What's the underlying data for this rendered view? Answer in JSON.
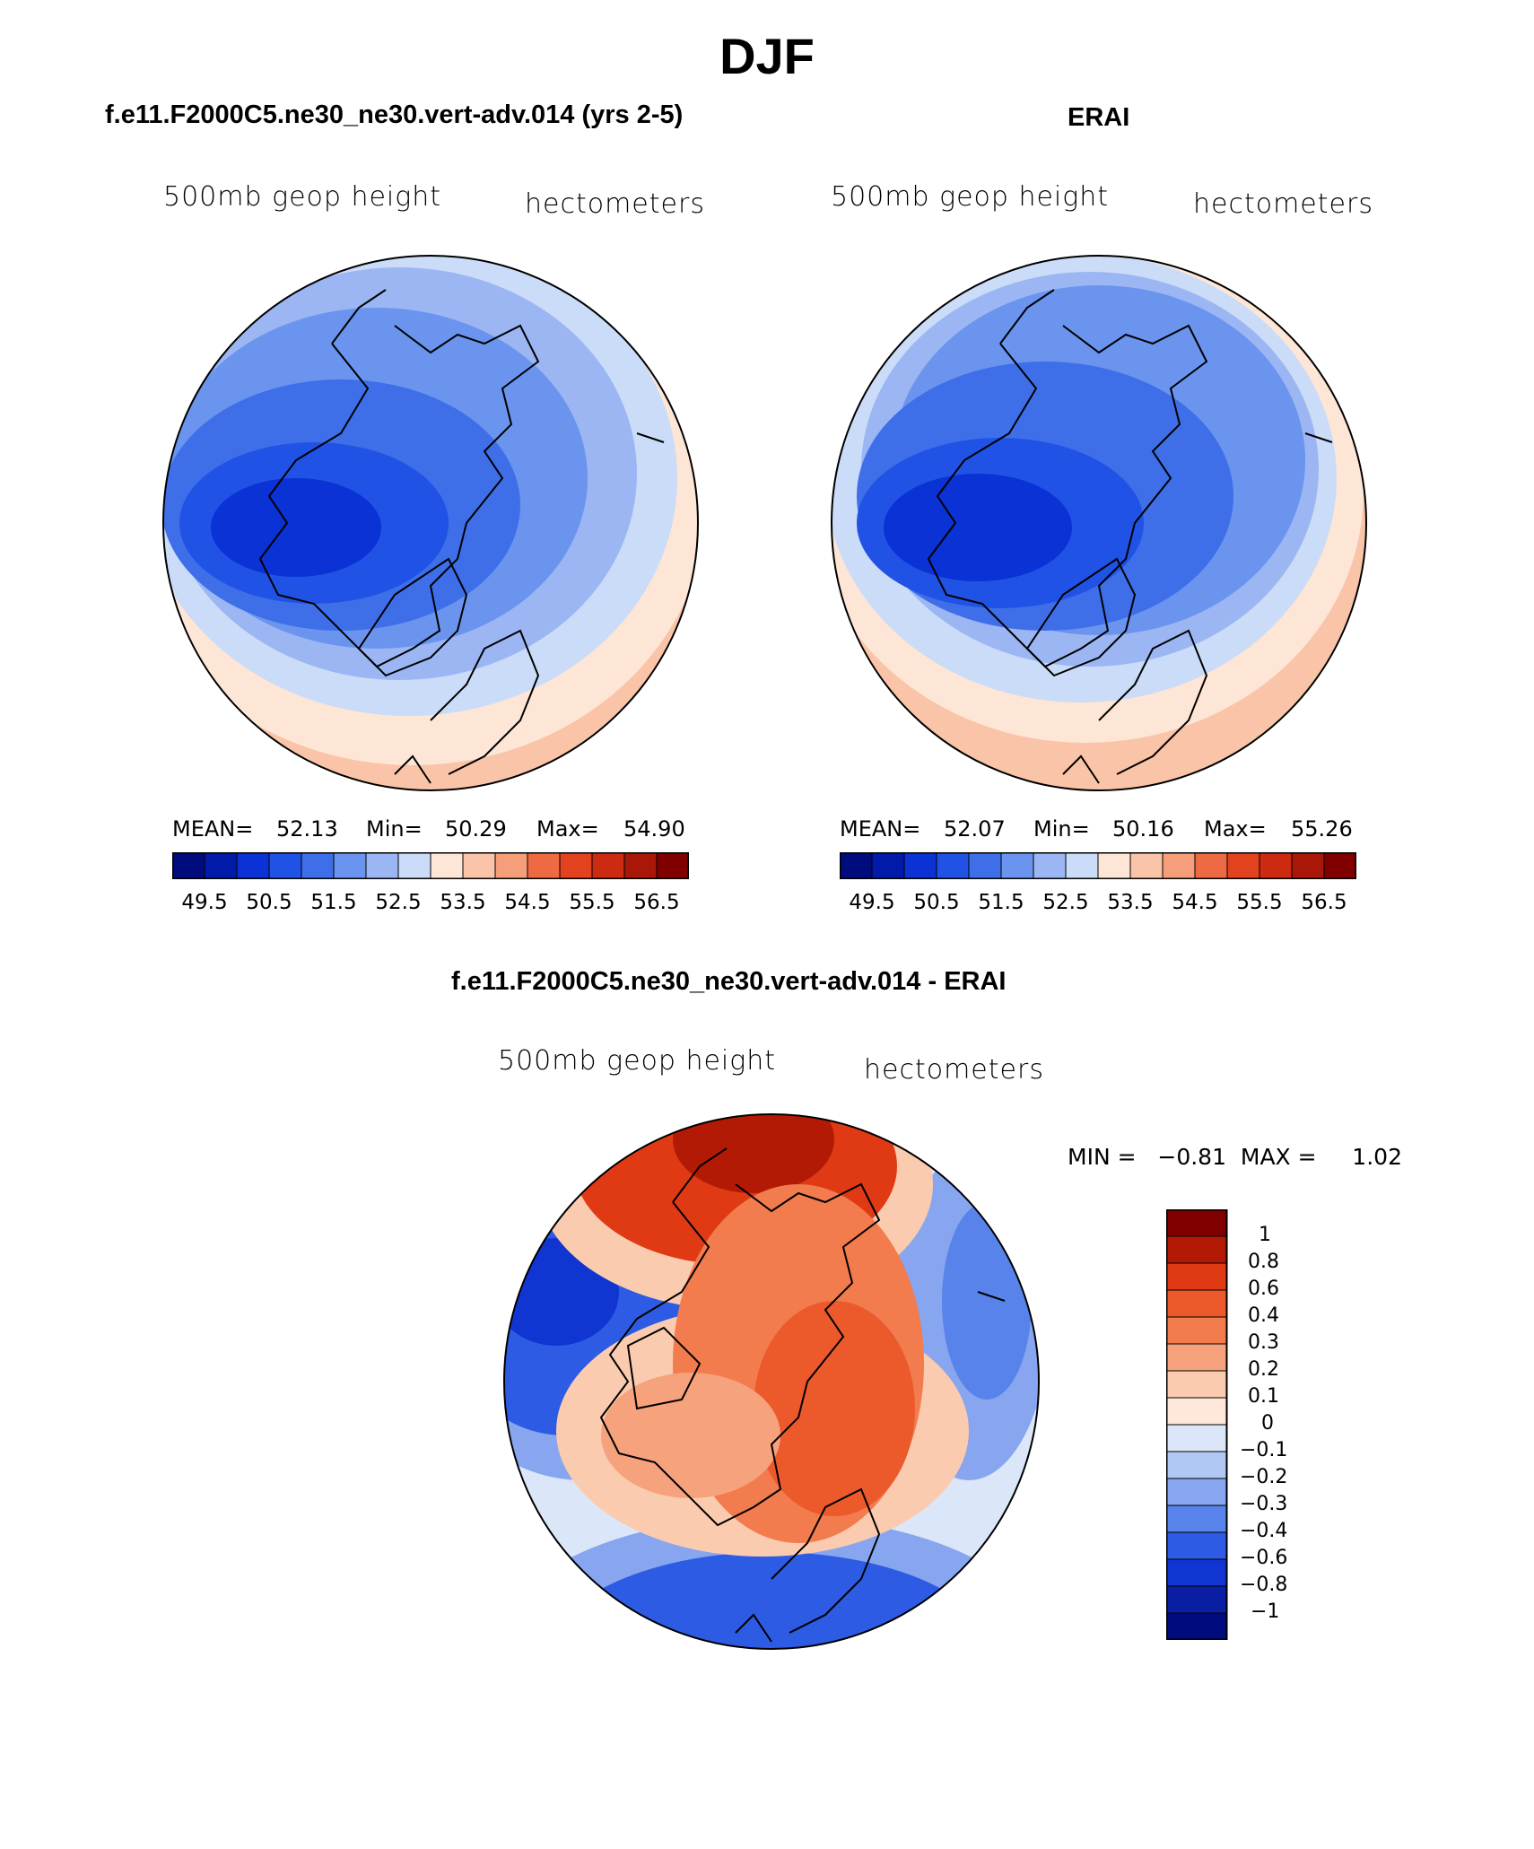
{
  "page": {
    "title": "DJF"
  },
  "panels": [
    {
      "id": "model",
      "heading": "f.e11.F2000C5.ne30_ne30.vert-adv.014 (yrs 2-5)",
      "left_label": "500mb  geop  height",
      "right_label": "hectometers",
      "stats": {
        "mean_label": "MEAN=",
        "mean": "52.13",
        "min_label": "Min=",
        "min": "50.29",
        "max_label": "Max=",
        "max": "54.90"
      },
      "colorbar_ticks": [
        "49.5",
        "50.5",
        "51.5",
        "52.5",
        "53.5",
        "54.5",
        "55.5",
        "56.5"
      ]
    },
    {
      "id": "erai",
      "heading": "ERAI",
      "left_label": "500mb  geop  height",
      "right_label": "hectometers",
      "stats": {
        "mean_label": "MEAN=",
        "mean": "52.07",
        "min_label": "Min=",
        "min": "50.16",
        "max_label": "Max=",
        "max": "55.26"
      },
      "colorbar_ticks": [
        "49.5",
        "50.5",
        "51.5",
        "52.5",
        "53.5",
        "54.5",
        "55.5",
        "56.5"
      ]
    }
  ],
  "diff": {
    "heading": "f.e11.F2000C5.ne30_ne30.vert-adv.014 - ERAI",
    "left_label": "500mb  geop  height",
    "right_label": "hectometers",
    "stats_text": "MIN =   −0.81  MAX =     1.02",
    "colorbar_labels": [
      "1",
      "0.8",
      "0.6",
      "0.4",
      "0.3",
      "0.2",
      "0.1",
      "0",
      "−0.1",
      "−0.2",
      "−0.3",
      "−0.4",
      "−0.6",
      "−0.8",
      "−1"
    ]
  },
  "colors": {
    "abs_scale": [
      "#000b7e",
      "#001aa9",
      "#0a32d4",
      "#2053e5",
      "#3e6fe9",
      "#6a94ee",
      "#9bb6f3",
      "#cadcf7",
      "#fde6d6",
      "#f9c4a8",
      "#f59e7a",
      "#ee6a42",
      "#e3421f",
      "#cc2a11",
      "#a81707",
      "#800000"
    ],
    "diff_scale": [
      "#800000",
      "#b31a06",
      "#e03a14",
      "#ec5a2c",
      "#f27c4e",
      "#f6a27c",
      "#fbcbb0",
      "#fde8da",
      "#dbe7f8",
      "#b0c9f4",
      "#87a6ef",
      "#5883ea",
      "#2d5be3",
      "#1035d0",
      "#0a1ea3",
      "#000b7e"
    ]
  }
}
